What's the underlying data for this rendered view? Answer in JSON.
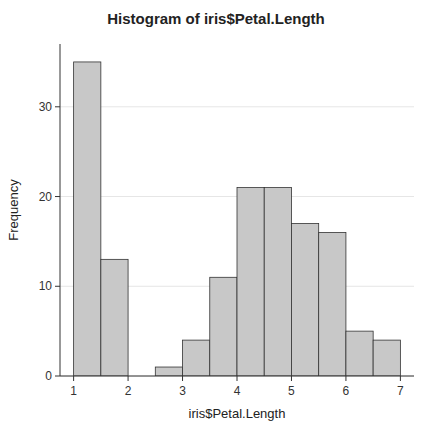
{
  "chart_data": {
    "type": "histogram",
    "title": "Histogram of iris$Petal.Length",
    "xlabel": "iris$Petal.Length",
    "ylabel": "Frequency",
    "bins": [
      1.0,
      1.5,
      2.0,
      2.5,
      3.0,
      3.5,
      4.0,
      4.5,
      5.0,
      5.5,
      6.0,
      6.5,
      7.0
    ],
    "values": [
      35,
      13,
      0,
      1,
      4,
      11,
      21,
      21,
      17,
      16,
      5,
      4
    ],
    "color": "#c8c8c8",
    "xlim": [
      0.75,
      7.25
    ],
    "ylim": [
      0,
      37
    ],
    "xticks": [
      1,
      2,
      3,
      4,
      5,
      6,
      7
    ],
    "yticks": [
      0,
      10,
      20,
      30
    ]
  }
}
